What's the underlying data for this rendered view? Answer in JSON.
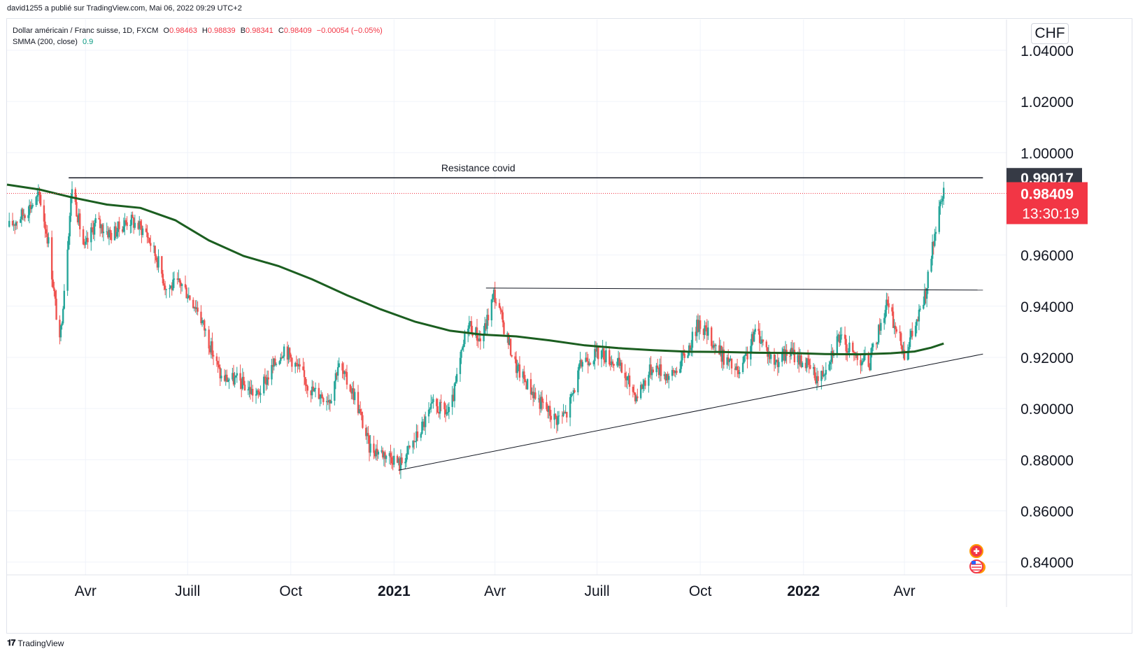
{
  "header": {
    "published_line": "david1255 a publié sur TradingView.com, Mai 06, 2022 09:29 UTC+2"
  },
  "legend": {
    "symbol": "Dollar américain / Franc suisse, 1D, FXCM",
    "o_label": "O",
    "o_value": "0.98463",
    "h_label": "H",
    "h_value": "0.98839",
    "l_label": "B",
    "l_value": "0.98341",
    "c_label": "C",
    "c_value": "0.98409",
    "change": "−0.00054 (−0.05%)",
    "indicator": "SMMA (200, close)",
    "indicator_value": "0.9"
  },
  "footer": {
    "brand": "TradingView"
  },
  "price_scale": {
    "currency": "CHF",
    "ticks": [
      "1.04000",
      "1.02000",
      "1.00000",
      "0.96000",
      "0.94000",
      "0.92000",
      "0.90000",
      "0.88000",
      "0.86000",
      "0.84000"
    ],
    "resistance_label": "0.99017",
    "last_price_label": "0.98409",
    "countdown": "13:30:19"
  },
  "time_scale": {
    "labels": [
      {
        "text": "Avr",
        "date": "2020-04-01",
        "bold": false
      },
      {
        "text": "Juill",
        "date": "2020-07-01",
        "bold": false
      },
      {
        "text": "Oct",
        "date": "2020-10-01",
        "bold": false
      },
      {
        "text": "2021",
        "date": "2021-01-01",
        "bold": true
      },
      {
        "text": "Avr",
        "date": "2021-04-01",
        "bold": false
      },
      {
        "text": "Juill",
        "date": "2021-07-01",
        "bold": false
      },
      {
        "text": "Oct",
        "date": "2021-10-01",
        "bold": false
      },
      {
        "text": "2022",
        "date": "2022-01-01",
        "bold": true
      },
      {
        "text": "Avr",
        "date": "2022-04-01",
        "bold": false
      }
    ]
  },
  "colors": {
    "up": "#26a69a",
    "down": "#ef5350",
    "smma": "#1b5e20",
    "grid": "#f0f3fa",
    "resistance_box": "#363a45",
    "last_price_box": "#f23645",
    "trendline": "#131722"
  },
  "chart_data": {
    "type": "candlestick",
    "symbol": "USDCHF",
    "interval": "1D",
    "ylim": [
      0.835,
      1.052
    ],
    "xlim": [
      "2020-01-22",
      "2022-07-01"
    ],
    "price_path": [
      {
        "date": "2020-01-24",
        "price": 0.971
      },
      {
        "date": "2020-02-05",
        "price": 0.976
      },
      {
        "date": "2020-02-20",
        "price": 0.983
      },
      {
        "date": "2020-02-28",
        "price": 0.965
      },
      {
        "date": "2020-03-09",
        "price": 0.925
      },
      {
        "date": "2020-03-20",
        "price": 0.987
      },
      {
        "date": "2020-03-31",
        "price": 0.962
      },
      {
        "date": "2020-04-10",
        "price": 0.973
      },
      {
        "date": "2020-04-24",
        "price": 0.968
      },
      {
        "date": "2020-05-10",
        "price": 0.974
      },
      {
        "date": "2020-05-25",
        "price": 0.969
      },
      {
        "date": "2020-06-05",
        "price": 0.957
      },
      {
        "date": "2020-06-12",
        "price": 0.947
      },
      {
        "date": "2020-06-25",
        "price": 0.949
      },
      {
        "date": "2020-07-10",
        "price": 0.939
      },
      {
        "date": "2020-07-31",
        "price": 0.912
      },
      {
        "date": "2020-08-15",
        "price": 0.911
      },
      {
        "date": "2020-09-01",
        "price": 0.905
      },
      {
        "date": "2020-09-25",
        "price": 0.924
      },
      {
        "date": "2020-10-20",
        "price": 0.907
      },
      {
        "date": "2020-11-05",
        "price": 0.904
      },
      {
        "date": "2020-11-12",
        "price": 0.917
      },
      {
        "date": "2020-11-27",
        "price": 0.905
      },
      {
        "date": "2020-12-10",
        "price": 0.885
      },
      {
        "date": "2020-12-31",
        "price": 0.881
      },
      {
        "date": "2021-01-06",
        "price": 0.878
      },
      {
        "date": "2021-01-20",
        "price": 0.888
      },
      {
        "date": "2021-02-05",
        "price": 0.901
      },
      {
        "date": "2021-02-20",
        "price": 0.898
      },
      {
        "date": "2021-03-08",
        "price": 0.934
      },
      {
        "date": "2021-03-20",
        "price": 0.926
      },
      {
        "date": "2021-03-31",
        "price": 0.945
      },
      {
        "date": "2021-04-20",
        "price": 0.916
      },
      {
        "date": "2021-05-10",
        "price": 0.903
      },
      {
        "date": "2021-05-25",
        "price": 0.896
      },
      {
        "date": "2021-06-04",
        "price": 0.898
      },
      {
        "date": "2021-06-18",
        "price": 0.919
      },
      {
        "date": "2021-07-05",
        "price": 0.922
      },
      {
        "date": "2021-07-20",
        "price": 0.917
      },
      {
        "date": "2021-08-05",
        "price": 0.905
      },
      {
        "date": "2021-08-20",
        "price": 0.917
      },
      {
        "date": "2021-09-05",
        "price": 0.912
      },
      {
        "date": "2021-09-20",
        "price": 0.923
      },
      {
        "date": "2021-09-30",
        "price": 0.934
      },
      {
        "date": "2021-10-20",
        "price": 0.921
      },
      {
        "date": "2021-11-05",
        "price": 0.913
      },
      {
        "date": "2021-11-20",
        "price": 0.931
      },
      {
        "date": "2021-12-05",
        "price": 0.918
      },
      {
        "date": "2021-12-20",
        "price": 0.922
      },
      {
        "date": "2022-01-05",
        "price": 0.917
      },
      {
        "date": "2022-01-15",
        "price": 0.911
      },
      {
        "date": "2022-02-01",
        "price": 0.928
      },
      {
        "date": "2022-02-15",
        "price": 0.921
      },
      {
        "date": "2022-03-01",
        "price": 0.918
      },
      {
        "date": "2022-03-16",
        "price": 0.941
      },
      {
        "date": "2022-04-01",
        "price": 0.922
      },
      {
        "date": "2022-04-10",
        "price": 0.931
      },
      {
        "date": "2022-04-20",
        "price": 0.945
      },
      {
        "date": "2022-04-28",
        "price": 0.968
      },
      {
        "date": "2022-05-06",
        "price": 0.9841
      }
    ],
    "smma_200": [
      {
        "date": "2020-01-22",
        "value": 0.9875
      },
      {
        "date": "2020-02-20",
        "value": 0.9856
      },
      {
        "date": "2020-03-20",
        "value": 0.9825
      },
      {
        "date": "2020-04-20",
        "value": 0.9797
      },
      {
        "date": "2020-05-20",
        "value": 0.9784
      },
      {
        "date": "2020-06-20",
        "value": 0.9736
      },
      {
        "date": "2020-07-20",
        "value": 0.9657
      },
      {
        "date": "2020-08-20",
        "value": 0.9596
      },
      {
        "date": "2020-09-20",
        "value": 0.9557
      },
      {
        "date": "2020-10-20",
        "value": 0.9505
      },
      {
        "date": "2020-11-20",
        "value": 0.9443
      },
      {
        "date": "2020-12-20",
        "value": 0.9388
      },
      {
        "date": "2021-01-20",
        "value": 0.9339
      },
      {
        "date": "2021-02-20",
        "value": 0.9304
      },
      {
        "date": "2021-03-20",
        "value": 0.9289
      },
      {
        "date": "2021-04-20",
        "value": 0.9282
      },
      {
        "date": "2021-05-20",
        "value": 0.9266
      },
      {
        "date": "2021-06-20",
        "value": 0.9247
      },
      {
        "date": "2021-07-20",
        "value": 0.9236
      },
      {
        "date": "2021-08-20",
        "value": 0.9228
      },
      {
        "date": "2021-09-20",
        "value": 0.9222
      },
      {
        "date": "2021-10-20",
        "value": 0.9221
      },
      {
        "date": "2021-11-20",
        "value": 0.9218
      },
      {
        "date": "2021-12-20",
        "value": 0.9217
      },
      {
        "date": "2022-01-20",
        "value": 0.9213
      },
      {
        "date": "2022-02-20",
        "value": 0.9212
      },
      {
        "date": "2022-03-20",
        "value": 0.9216
      },
      {
        "date": "2022-04-10",
        "value": 0.9223
      },
      {
        "date": "2022-04-25",
        "value": 0.9238
      },
      {
        "date": "2022-05-06",
        "value": 0.9254
      }
    ],
    "annotations": [
      {
        "type": "horizontal_line",
        "label": "Resistance covid",
        "value": 0.99017,
        "from": "2020-03-17",
        "to": "2022-06-10"
      },
      {
        "type": "trendline",
        "from": {
          "date": "2021-03-24",
          "value": 0.9471
        },
        "to": {
          "date": "2022-06-10",
          "value": 0.9463
        }
      },
      {
        "type": "trendline",
        "from": {
          "date": "2021-01-05",
          "value": 0.8759
        },
        "to": {
          "date": "2022-06-10",
          "value": 0.9213
        }
      },
      {
        "type": "price_line",
        "value": 0.98409
      }
    ]
  }
}
